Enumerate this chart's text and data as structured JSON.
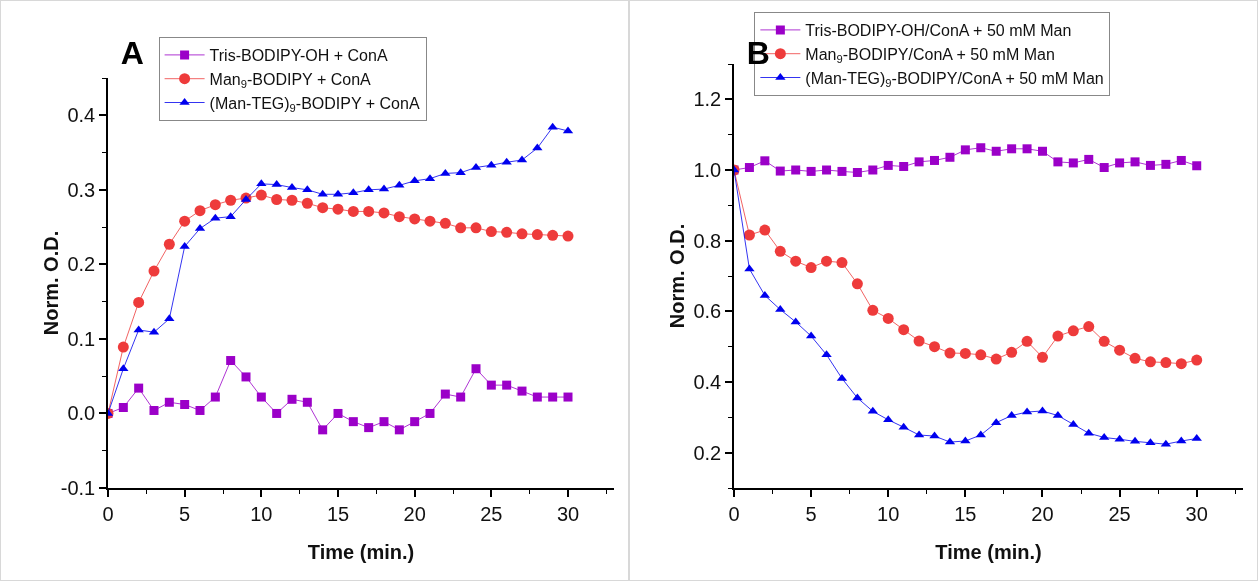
{
  "chart_data": [
    {
      "type": "line",
      "title": "A",
      "xlabel": "Time (min.)",
      "ylabel": "Norm. O.D.",
      "legend": "top",
      "line_style": "solid",
      "x": [
        0,
        1,
        2,
        3,
        4,
        5,
        6,
        7,
        8,
        9,
        10,
        11,
        12,
        13,
        14,
        15,
        16,
        17,
        18,
        19,
        20,
        21,
        22,
        23,
        24,
        25,
        26,
        27,
        28,
        29,
        30
      ],
      "xlim": [
        0,
        33
      ],
      "xticks": [
        0,
        5,
        10,
        15,
        20,
        25,
        30
      ],
      "ylim": [
        -0.1,
        0.45
      ],
      "yticks": [
        -0.1,
        {
          "value": 0,
          "label": "0.0"
        },
        0.1,
        0.2,
        0.3,
        0.4
      ],
      "series": [
        {
          "name": "Tris-BODIPY-OH + ConA",
          "color": "#9b00c8",
          "marker": "square",
          "values": [
            0,
            0.008,
            0.034,
            0.004,
            0.015,
            0.012,
            0.004,
            0.022,
            0.071,
            0.049,
            0.022,
            0,
            0.019,
            0.015,
            -0.022,
            0,
            -0.011,
            -0.019,
            -0.011,
            -0.022,
            -0.011,
            0,
            0.026,
            0.022,
            0.06,
            0.038,
            0.038,
            0.03,
            0.022,
            0.022,
            0.022
          ]
        },
        {
          "name": "Man$_{9}$-BODIPY + ConA",
          "color": "#ee3b3b",
          "marker": "circle",
          "values": [
            0,
            0.089,
            0.149,
            0.191,
            0.227,
            0.258,
            0.272,
            0.28,
            0.286,
            0.289,
            0.293,
            0.287,
            0.286,
            0.282,
            0.276,
            0.274,
            0.271,
            0.271,
            0.269,
            0.264,
            0.261,
            0.258,
            0.255,
            0.249,
            0.249,
            0.244,
            0.243,
            0.241,
            0.24,
            0.239,
            0.238
          ]
        },
        {
          "name": "(Man-TEG)$_{9}$-BODIPY + ConA",
          "color": "#0000ee",
          "marker": "triangle",
          "values": [
            0,
            0.06,
            0.112,
            0.109,
            0.127,
            0.224,
            0.248,
            0.262,
            0.264,
            0.287,
            0.308,
            0.307,
            0.303,
            0.3,
            0.294,
            0.294,
            0.296,
            0.3,
            0.301,
            0.306,
            0.312,
            0.315,
            0.322,
            0.323,
            0.33,
            0.333,
            0.337,
            0.34,
            0.356,
            0.384,
            0.379
          ]
        }
      ]
    },
    {
      "type": "line",
      "title": "B",
      "xlabel": "Time (min.)",
      "ylabel": "Norm. O.D.",
      "legend": "top",
      "line_style": "solid",
      "x": [
        0,
        1,
        2,
        3,
        4,
        5,
        6,
        7,
        8,
        9,
        10,
        11,
        12,
        13,
        14,
        15,
        16,
        17,
        18,
        19,
        20,
        21,
        22,
        23,
        24,
        25,
        26,
        27,
        28,
        29,
        30
      ],
      "xlim": [
        0,
        33
      ],
      "xticks": [
        0,
        5,
        10,
        15,
        20,
        25,
        30
      ],
      "ylim": [
        0.1,
        1.3
      ],
      "yticks": [
        0.2,
        0.4,
        0.6,
        0.8,
        {
          "value": 1,
          "label": "1.0"
        },
        1.2
      ],
      "series": [
        {
          "name": "Tris-BODIPY-OH/ConA + 50 mM Man",
          "color": "#9b00c8",
          "marker": "square",
          "values": [
            1.0,
            1.007,
            1.026,
            0.997,
            1.0,
            0.996,
            1.0,
            0.996,
            0.993,
            1.0,
            1.013,
            1.01,
            1.023,
            1.027,
            1.036,
            1.057,
            1.063,
            1.053,
            1.06,
            1.06,
            1.053,
            1.023,
            1.02,
            1.03,
            1.007,
            1.02,
            1.023,
            1.013,
            1.016,
            1.027,
            1.012
          ]
        },
        {
          "name": "Man$_{9}$-BODIPY/ConA + 50 mM Man",
          "color": "#ee3b3b",
          "marker": "circle",
          "values": [
            1.0,
            0.816,
            0.83,
            0.77,
            0.742,
            0.724,
            0.742,
            0.738,
            0.678,
            0.603,
            0.58,
            0.548,
            0.516,
            0.5,
            0.482,
            0.481,
            0.477,
            0.465,
            0.484,
            0.515,
            0.47,
            0.53,
            0.545,
            0.557,
            0.515,
            0.49,
            0.467,
            0.457,
            0.455,
            0.452,
            0.462
          ]
        },
        {
          "name": "(Man-TEG)$_{9}$-BODIPY/ConA + 50 mM Man",
          "color": "#0000ee",
          "marker": "triangle",
          "values": [
            1.0,
            0.72,
            0.645,
            0.605,
            0.57,
            0.53,
            0.477,
            0.41,
            0.355,
            0.317,
            0.293,
            0.272,
            0.25,
            0.247,
            0.23,
            0.233,
            0.25,
            0.285,
            0.305,
            0.315,
            0.318,
            0.305,
            0.28,
            0.255,
            0.243,
            0.238,
            0.232,
            0.228,
            0.224,
            0.233,
            0.24
          ]
        }
      ]
    }
  ]
}
